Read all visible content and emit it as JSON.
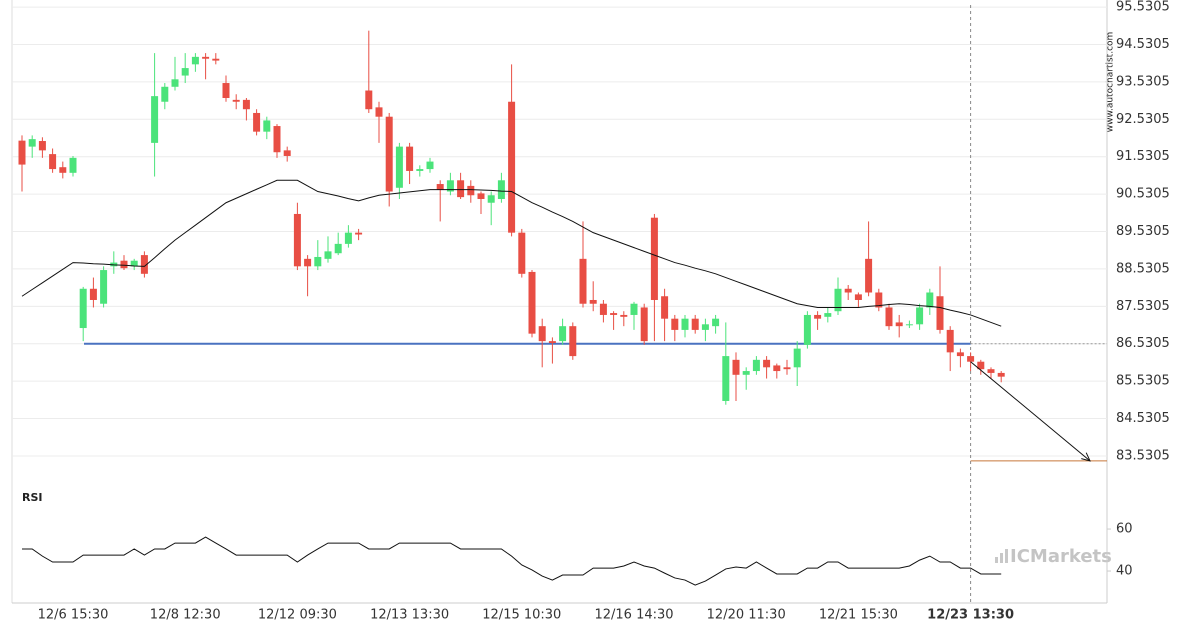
{
  "chart_data": {
    "type": "candlestick",
    "categories": [
      null,
      null,
      null,
      null,
      null,
      "12/6 15:30",
      null,
      null,
      null,
      null,
      null,
      null,
      null,
      null,
      null,
      null,
      "12/8 12:30",
      null,
      null,
      null,
      null,
      null,
      null,
      null,
      null,
      null,
      null,
      "12/12 09:30",
      null,
      null,
      null,
      null,
      null,
      null,
      null,
      null,
      null,
      null,
      "12/13 13:30",
      null,
      null,
      null,
      null,
      null,
      null,
      null,
      null,
      null,
      null,
      "12/15 10:30",
      null,
      null,
      null,
      null,
      null,
      null,
      null,
      null,
      null,
      null,
      "12/16 14:30",
      null,
      null,
      null,
      null,
      null,
      null,
      null,
      null,
      null,
      null,
      "12/20 11:30",
      null,
      null,
      null,
      null,
      null,
      null,
      null,
      null,
      null,
      null,
      "12/21 15:30",
      null,
      null,
      null,
      null,
      null,
      null,
      null,
      null,
      null,
      null,
      "12/23 13:30",
      null,
      null,
      null
    ],
    "open": [
      91.96,
      91.8,
      91.95,
      91.6,
      91.25,
      91.1,
      86.95,
      88.0,
      87.6,
      88.6,
      88.75,
      88.6,
      88.9,
      91.9,
      93.0,
      93.4,
      93.7,
      94.0,
      94.2,
      94.15,
      93.5,
      93.05,
      93.05,
      92.7,
      92.2,
      92.35,
      91.7,
      90.0,
      88.8,
      88.6,
      88.8,
      88.95,
      89.2,
      89.5,
      93.3,
      92.85,
      92.6,
      90.7,
      91.8,
      91.15,
      91.2,
      90.8,
      90.6,
      90.9,
      90.75,
      90.55,
      90.3,
      90.4,
      93.0,
      89.5,
      88.45,
      87.0,
      86.6,
      86.6,
      87.0,
      88.8,
      87.7,
      87.6,
      87.35,
      87.3,
      87.3,
      87.5,
      89.9,
      87.8,
      87.2,
      86.9,
      87.2,
      86.9,
      87.0,
      85.0,
      86.1,
      85.7,
      85.8,
      86.1,
      85.95,
      85.9,
      85.9,
      86.5,
      87.3,
      87.25,
      87.4,
      88.0,
      87.85,
      88.8,
      87.9,
      87.5,
      87.1,
      87.05,
      87.05,
      87.5,
      87.8,
      86.9,
      86.3,
      86.2,
      86.05,
      85.85,
      85.75
    ],
    "high": [
      92.1,
      92.1,
      92.05,
      91.75,
      91.4,
      91.55,
      88.05,
      88.3,
      88.6,
      89.0,
      88.9,
      88.8,
      89.0,
      94.3,
      93.5,
      94.2,
      94.3,
      94.3,
      94.3,
      94.3,
      93.7,
      93.2,
      93.1,
      92.8,
      92.6,
      92.4,
      91.8,
      90.3,
      88.9,
      89.3,
      89.4,
      89.5,
      89.7,
      89.6,
      94.9,
      93.0,
      92.7,
      91.9,
      91.9,
      91.3,
      91.5,
      90.9,
      91.1,
      91.1,
      90.9,
      90.6,
      90.6,
      91.1,
      94.0,
      89.6,
      88.5,
      87.2,
      86.7,
      87.2,
      87.1,
      89.8,
      88.2,
      87.7,
      87.4,
      87.4,
      87.65,
      87.6,
      90.0,
      88.0,
      87.3,
      87.3,
      87.3,
      87.2,
      87.3,
      87.1,
      86.3,
      85.9,
      86.2,
      86.2,
      86.0,
      86.1,
      86.6,
      87.4,
      87.4,
      87.5,
      88.3,
      88.1,
      87.9,
      89.8,
      88.0,
      87.6,
      87.3,
      87.15,
      87.6,
      88.0,
      88.6,
      87.0,
      86.4,
      86.3,
      86.1,
      85.9,
      85.8
    ],
    "low": [
      90.6,
      91.5,
      91.5,
      91.1,
      90.95,
      91.0,
      86.6,
      87.5,
      87.5,
      88.4,
      88.5,
      88.5,
      88.3,
      91.0,
      92.8,
      93.3,
      93.5,
      93.8,
      93.6,
      94.0,
      93.0,
      92.8,
      92.5,
      92.1,
      92.0,
      91.5,
      91.4,
      88.5,
      87.8,
      88.5,
      88.7,
      88.9,
      89.1,
      89.3,
      92.7,
      91.9,
      90.2,
      90.4,
      90.8,
      91.0,
      91.1,
      89.8,
      90.5,
      90.4,
      90.3,
      90.0,
      89.7,
      90.3,
      89.4,
      88.3,
      86.7,
      85.9,
      86.0,
      86.5,
      86.1,
      87.5,
      87.4,
      87.1,
      86.9,
      87.0,
      86.9,
      86.5,
      86.6,
      86.6,
      86.6,
      86.7,
      86.8,
      86.6,
      86.8,
      84.9,
      85.0,
      85.3,
      85.7,
      85.6,
      85.6,
      85.7,
      85.4,
      86.4,
      86.9,
      87.1,
      87.3,
      87.7,
      87.5,
      87.8,
      87.4,
      86.9,
      86.7,
      86.95,
      86.9,
      87.3,
      86.8,
      85.8,
      85.9,
      85.8,
      85.7,
      85.6,
      85.5
    ],
    "close": [
      91.32,
      92.0,
      91.7,
      91.2,
      91.1,
      91.5,
      88.0,
      87.7,
      88.5,
      88.7,
      88.55,
      88.75,
      88.4,
      93.15,
      93.4,
      93.6,
      93.9,
      94.2,
      94.15,
      94.1,
      93.1,
      93.0,
      92.8,
      92.2,
      92.5,
      91.65,
      91.55,
      88.6,
      88.6,
      88.85,
      89.0,
      89.2,
      89.5,
      89.45,
      92.8,
      92.6,
      90.6,
      91.8,
      91.15,
      91.2,
      91.4,
      90.65,
      90.9,
      90.45,
      90.5,
      90.4,
      90.5,
      90.9,
      89.5,
      88.4,
      86.8,
      86.6,
      86.55,
      87.0,
      86.2,
      87.6,
      87.6,
      87.3,
      87.3,
      87.25,
      87.6,
      86.6,
      87.7,
      87.2,
      86.9,
      87.2,
      86.9,
      87.05,
      87.2,
      86.2,
      85.7,
      85.8,
      86.1,
      85.9,
      85.8,
      85.85,
      86.4,
      87.3,
      87.2,
      87.35,
      88.0,
      87.9,
      87.7,
      87.9,
      87.5,
      87.0,
      87.0,
      87.05,
      87.5,
      87.9,
      86.9,
      86.3,
      86.2,
      86.05,
      85.85,
      85.75,
      85.65
    ],
    "up_color": "#4be37a",
    "down_color": "#e84e44",
    "ylim": [
      82.62,
      95.72
    ],
    "yticks": [
      95.5305,
      94.5305,
      93.5305,
      92.5305,
      91.5305,
      90.5305,
      89.5305,
      88.5305,
      87.5305,
      86.5305,
      85.5305,
      84.5305,
      83.5305
    ],
    "grid": true,
    "moving_average": {
      "color": "#111111",
      "values": [
        87.8,
        87.98,
        88.16,
        88.34,
        88.52,
        88.7,
        88.69,
        88.67,
        88.66,
        88.64,
        88.63,
        88.61,
        88.6,
        88.83,
        89.07,
        89.3,
        89.5,
        89.7,
        89.9,
        90.1,
        90.3,
        90.42,
        90.54,
        90.66,
        90.78,
        90.9,
        90.9,
        90.9,
        90.75,
        90.6,
        90.54,
        90.48,
        90.41,
        90.35,
        90.43,
        90.5,
        90.53,
        90.56,
        90.59,
        90.62,
        90.65,
        90.65,
        90.65,
        90.65,
        90.65,
        90.64,
        90.63,
        90.61,
        90.6,
        90.45,
        90.3,
        90.18,
        90.05,
        89.93,
        89.8,
        89.65,
        89.5,
        89.4,
        89.3,
        89.2,
        89.1,
        89.0,
        88.9,
        88.8,
        88.7,
        88.63,
        88.55,
        88.48,
        88.4,
        88.3,
        88.2,
        88.1,
        88.0,
        87.9,
        87.8,
        87.7,
        87.6,
        87.55,
        87.5,
        87.5,
        87.5,
        87.5,
        87.5,
        87.53,
        87.55,
        87.58,
        87.6,
        87.58,
        87.55,
        87.53,
        87.5,
        87.43,
        87.37,
        87.3,
        87.2,
        87.1,
        87.0
      ]
    },
    "support_level": {
      "value": 86.5305,
      "color": "#4a72c0"
    },
    "target_level": {
      "value": 83.4,
      "color": "#c8773a"
    },
    "forecast_start": 86.05,
    "current_index": 93,
    "rsi": {
      "label": "RSI",
      "color": "#111111",
      "ylim": [
        26.2,
        78.6
      ],
      "yticks": [
        60,
        40
      ],
      "values": [
        50.5,
        50.5,
        47.1,
        44.3,
        44.3,
        44.3,
        47.6,
        47.6,
        47.6,
        47.6,
        47.6,
        50.5,
        47.6,
        50.5,
        50.5,
        53.3,
        53.3,
        53.3,
        56.2,
        53.3,
        50.5,
        47.6,
        47.6,
        47.6,
        47.6,
        47.6,
        47.6,
        44.3,
        47.6,
        50.5,
        53.3,
        53.3,
        53.3,
        53.3,
        50.5,
        50.5,
        50.5,
        53.3,
        53.3,
        53.3,
        53.3,
        53.3,
        53.3,
        50.5,
        50.5,
        50.5,
        50.5,
        50.5,
        47.1,
        42.9,
        40.5,
        37.6,
        35.7,
        38.1,
        38.1,
        38.1,
        41.4,
        41.4,
        41.4,
        42.4,
        44.3,
        42.4,
        41.4,
        39.0,
        36.7,
        35.7,
        33.3,
        35.2,
        38.1,
        41.0,
        41.9,
        41.4,
        44.3,
        41.4,
        38.6,
        38.6,
        38.6,
        41.4,
        41.4,
        44.3,
        44.3,
        41.4,
        41.4,
        41.4,
        41.4,
        41.4,
        41.4,
        42.4,
        45.2,
        47.1,
        44.3,
        44.3,
        41.4,
        41.4,
        38.6,
        38.6,
        38.6
      ]
    },
    "watermark": "www.autochartist.com",
    "logo": "ICMarkets"
  }
}
